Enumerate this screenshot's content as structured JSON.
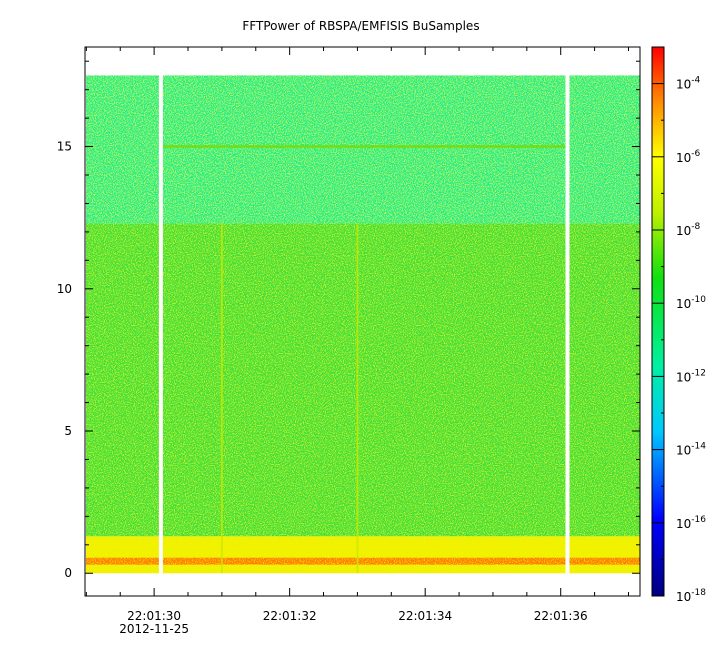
{
  "chart_data": {
    "type": "heatmap",
    "title": "FFTPower of RBSPA/EMFISIS  BuSamples",
    "xlabel": "",
    "ylabel": "",
    "date_label": "2012-11-25",
    "x_ticks": [
      "22:01:30",
      "22:01:32",
      "22:01:34",
      "22:01:36"
    ],
    "xlim": [
      "22:01:28.98",
      "22:01:37.17"
    ],
    "y_ticks": [
      0,
      5,
      10,
      15
    ],
    "ylim": [
      -0.8,
      18.5
    ],
    "colorbar": {
      "scale": "log",
      "range": [
        1e-18,
        0.001
      ],
      "tick_base": "10",
      "tick_exponents": [
        "-4",
        "-6",
        "-8",
        "-10",
        "-12",
        "-14",
        "-16",
        "-18"
      ]
    },
    "data_coverage": {
      "frequency_range": [
        0.0,
        17.5
      ],
      "gaps_at": [
        "22:01:30.1",
        "22:01:36.1"
      ]
    },
    "bands": [
      {
        "y_range": [
          0.0,
          0.3
        ],
        "level": "1e-8"
      },
      {
        "y_range": [
          0.3,
          0.55
        ],
        "level": "1e-6"
      },
      {
        "y_range": [
          0.55,
          1.3
        ],
        "level": "1e-8"
      },
      {
        "y_range": [
          1.3,
          12.3
        ],
        "level": "1e-10"
      },
      {
        "y_range": [
          12.3,
          17.5
        ],
        "level": "1e-12"
      }
    ],
    "features": [
      {
        "kind": "horizontal-line",
        "y": 15.0,
        "x_range": [
          "22:01:30.1",
          "22:01:36.1"
        ]
      },
      {
        "kind": "vertical-line",
        "x": "22:01:31.0",
        "y_range": [
          0.0,
          12.3
        ]
      },
      {
        "kind": "vertical-line",
        "x": "22:01:33.0",
        "y_range": [
          0.0,
          12.3
        ]
      }
    ]
  }
}
